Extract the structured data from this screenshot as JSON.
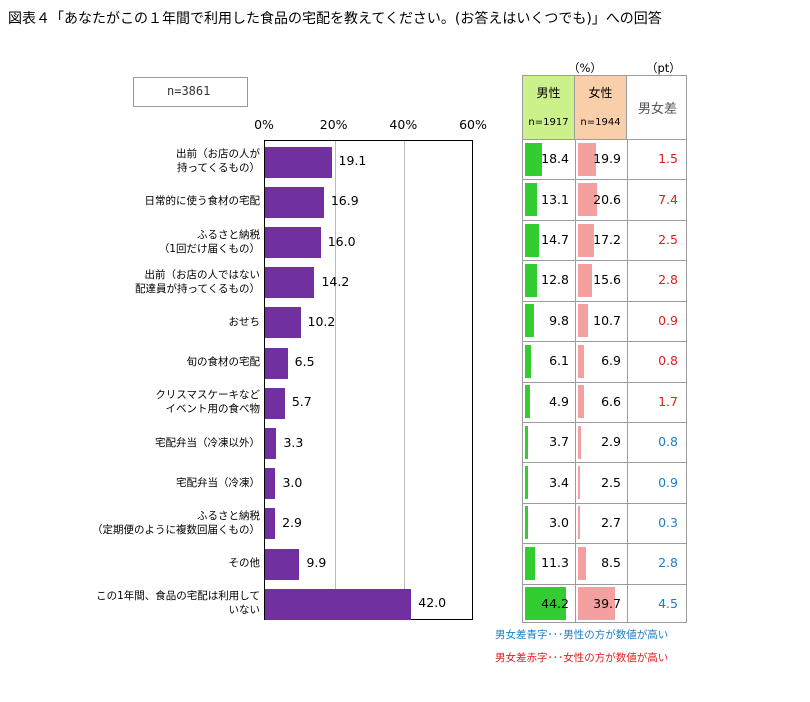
{
  "title": "図表４「あなたがこの１年間で利用した食品の宅配を教えてください。(お答えはいくつでも)」への回答",
  "chart_data": {
    "type": "bar",
    "orientation": "horizontal",
    "sample_label": "n=3861",
    "xlim": [
      0,
      60
    ],
    "x_ticks": [
      "0%",
      "20%",
      "40%",
      "60%"
    ],
    "categories": [
      [
        "出前（お店の人が",
        "持ってくるもの）"
      ],
      [
        "日常的に使う食材の宅配"
      ],
      [
        "ふるさと納税",
        "（1回だけ届くもの）"
      ],
      [
        "出前（お店の人ではない",
        "配達員が持ってくるもの）"
      ],
      [
        "おせち"
      ],
      [
        "旬の食材の宅配"
      ],
      [
        "クリスマスケーキなど",
        "イベント用の食べ物"
      ],
      [
        "宅配弁当（冷凍以外）"
      ],
      [
        "宅配弁当（冷凍）"
      ],
      [
        "ふるさと納税",
        "（定期便のように複数回届くもの）"
      ],
      [
        "その他"
      ],
      [
        "この1年間、食品の宅配は利用して",
        "いない"
      ]
    ],
    "values": [
      19.1,
      16.9,
      16.0,
      14.2,
      10.2,
      6.5,
      5.7,
      3.3,
      3.0,
      2.9,
      9.9,
      42.0
    ],
    "value_labels": [
      "19.1",
      "16.9",
      "16.0",
      "14.2",
      "10.2",
      "6.5",
      "5.7",
      "3.3",
      "3.0",
      "2.9",
      "9.9",
      "42.0"
    ],
    "bar_color": "#7030a0",
    "table": {
      "unit_pct": "（%）",
      "unit_pt": "（pt）",
      "male_label": "男性",
      "male_n": "n=1917",
      "female_label": "女性",
      "female_n": "n=1944",
      "diff_label": "男女差",
      "male_values": [
        18.4,
        13.1,
        14.7,
        12.8,
        9.8,
        6.1,
        4.9,
        3.7,
        3.4,
        3.0,
        11.3,
        44.2
      ],
      "male_labels": [
        "18.4",
        "13.1",
        "14.7",
        "12.8",
        "9.8",
        "6.1",
        "4.9",
        "3.7",
        "3.4",
        "3.0",
        "11.3",
        "44.2"
      ],
      "female_values": [
        19.9,
        20.6,
        17.2,
        15.6,
        10.7,
        6.9,
        6.6,
        2.9,
        2.5,
        2.7,
        8.5,
        39.7
      ],
      "female_labels": [
        "19.9",
        "20.6",
        "17.2",
        "15.6",
        "10.7",
        "6.9",
        "6.6",
        "2.9",
        "2.5",
        "2.7",
        "8.5",
        "39.7"
      ],
      "diff_labels": [
        "1.5",
        "7.4",
        "2.5",
        "2.8",
        "0.9",
        "0.8",
        "1.7",
        "0.8",
        "0.9",
        "0.3",
        "2.8",
        "4.5"
      ],
      "diff_colors": [
        "red",
        "red",
        "red",
        "red",
        "red",
        "red",
        "red",
        "blue",
        "blue",
        "blue",
        "blue",
        "blue"
      ],
      "male_color": "#33cc33",
      "female_color": "#f4a0a0",
      "red_color": "#e02020",
      "blue_color": "#1a7fc8"
    }
  },
  "notes": {
    "blue": "男女差青字･･･男性の方が数値が高い",
    "red": "男女差赤字･･･女性の方が数値が高い"
  }
}
